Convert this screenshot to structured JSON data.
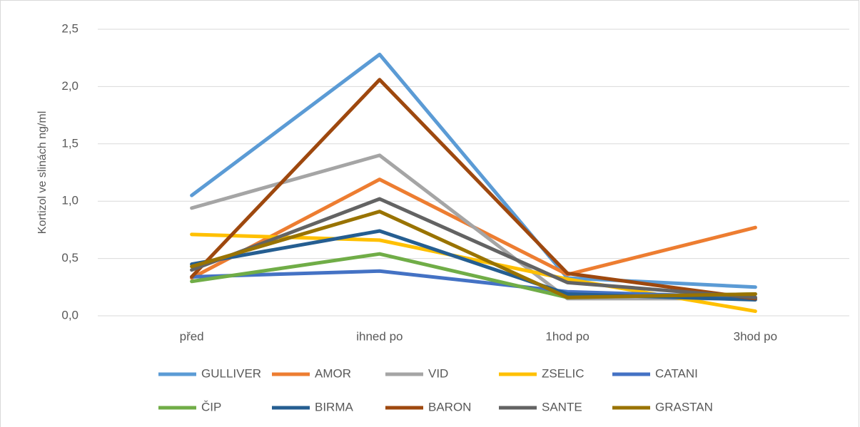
{
  "chart_data": {
    "type": "line",
    "y_label": "Kortizol ve slinách ng/ml",
    "categories": [
      "před",
      "ihned po",
      "1hod po",
      "3hod po"
    ],
    "series": [
      {
        "name": "GULLIVER",
        "color": "#5b9bd5",
        "values": [
          1.05,
          2.28,
          0.33,
          0.25
        ]
      },
      {
        "name": "AMOR",
        "color": "#ed7d31",
        "values": [
          0.33,
          1.19,
          0.36,
          0.77
        ]
      },
      {
        "name": "VID",
        "color": "#a5a5a5",
        "values": [
          0.94,
          1.4,
          0.15,
          0.15
        ]
      },
      {
        "name": "ZSELIC",
        "color": "#ffc000",
        "values": [
          0.71,
          0.66,
          0.32,
          0.04
        ]
      },
      {
        "name": "CATANI",
        "color": "#4472c4",
        "values": [
          0.34,
          0.39,
          0.21,
          0.16
        ]
      },
      {
        "name": "ČIP",
        "color": "#70ad47",
        "values": [
          0.3,
          0.54,
          0.16,
          0.19
        ]
      },
      {
        "name": "BIRMA",
        "color": "#255e91",
        "values": [
          0.45,
          0.74,
          0.19,
          0.14
        ]
      },
      {
        "name": "BARON",
        "color": "#9e480e",
        "values": [
          0.34,
          2.06,
          0.37,
          0.15
        ]
      },
      {
        "name": "SANTE",
        "color": "#636363",
        "values": [
          0.4,
          1.02,
          0.29,
          0.16
        ]
      },
      {
        "name": "GRASTAN",
        "color": "#997300",
        "values": [
          0.43,
          0.91,
          0.16,
          0.19
        ]
      }
    ],
    "ylim": [
      0,
      2.5
    ],
    "yticks": [
      {
        "value": 0,
        "label": "0,0"
      },
      {
        "value": 0.5,
        "label": "0,5"
      },
      {
        "value": 1,
        "label": "1,0"
      },
      {
        "value": 1.5,
        "label": "1,5"
      },
      {
        "value": 2,
        "label": "2,0"
      },
      {
        "value": 2.5,
        "label": "2,5"
      }
    ],
    "grid": true,
    "legend": "bottom"
  }
}
